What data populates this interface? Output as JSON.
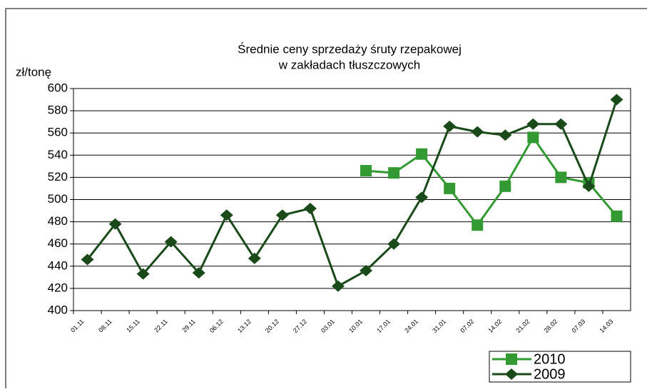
{
  "chart_data": {
    "type": "line",
    "title": [
      "Średnie ceny sprzedaży śruty rzepakowej",
      "w zakładach tłuszczowych"
    ],
    "ylabel": "zł/tonę",
    "categories": [
      "01.11",
      "08.11",
      "15.11",
      "22.11",
      "29.11",
      "06.12",
      "13.12",
      "20.12",
      "27.12",
      "03.01",
      "10.01",
      "17.01",
      "24.01",
      "31.01",
      "07.02",
      "14.02",
      "21.02",
      "28.02",
      "07.03",
      "14.03"
    ],
    "series": [
      {
        "name": "2010",
        "color": "#339933",
        "marker": "square",
        "values": [
          null,
          null,
          null,
          null,
          null,
          null,
          null,
          null,
          null,
          null,
          526,
          524,
          541,
          510,
          477,
          512,
          556,
          520,
          515,
          485
        ]
      },
      {
        "name": "2009",
        "color": "#1a4a1a",
        "marker": "diamond",
        "values": [
          446,
          478,
          433,
          462,
          434,
          486,
          447,
          486,
          492,
          422,
          436,
          460,
          502,
          566,
          561,
          558,
          568,
          568,
          512,
          590
        ]
      }
    ],
    "ylim": [
      400,
      600
    ],
    "yticks": [
      400,
      420,
      440,
      460,
      480,
      500,
      520,
      540,
      560,
      580,
      600
    ],
    "grid": true,
    "legend": "bottom-right"
  }
}
